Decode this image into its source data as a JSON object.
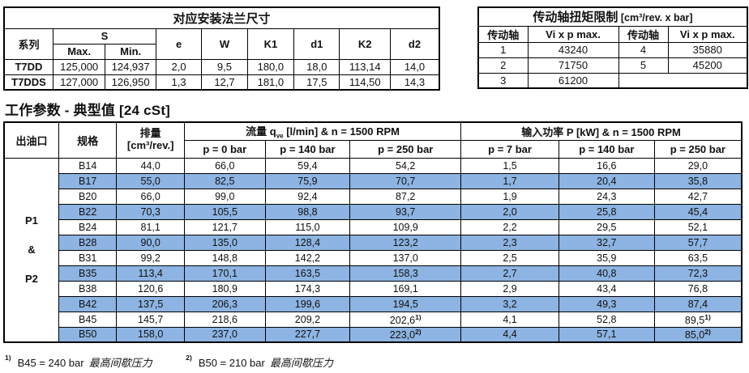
{
  "colors": {
    "highlight": "#8db4e2",
    "border": "#000000",
    "text": "#111111"
  },
  "flange_table": {
    "title": "对应安装法兰尺寸",
    "col_series": "系列",
    "col_s": "S",
    "col_s_max": "Max.",
    "col_s_min": "Min.",
    "cols": [
      "e",
      "W",
      "K1",
      "d1",
      "K2",
      "d2"
    ],
    "rows": [
      {
        "series": "T7DD",
        "values": [
          "125,000",
          "124,937",
          "2,0",
          "9,5",
          "180,0",
          "18,0",
          "113,14",
          "14,0"
        ]
      },
      {
        "series": "T7DDS",
        "values": [
          "127,000",
          "126,950",
          "1,3",
          "12,7",
          "181,0",
          "17,5",
          "114,50",
          "14,3"
        ]
      }
    ]
  },
  "torque_table": {
    "title_bold": "传动轴扭矩限制",
    "title_unit": " [cm³/rev. x bar]",
    "col_shaft": "传动轴",
    "col_vip": "Vi x p max.",
    "rows": [
      [
        "1",
        "43240",
        "4",
        "35880"
      ],
      [
        "2",
        "71750",
        "5",
        "45200"
      ],
      [
        "3",
        "61200",
        "",
        ""
      ]
    ]
  },
  "params_section": {
    "title": "工作参数 - 典型值 [24 cSt]",
    "col_outlet": "出油口",
    "col_size": "规格",
    "col_displacement_line1": "排量",
    "col_displacement_line2": "[cm³/rev.]",
    "flow_header_prefix": "流量 q",
    "flow_header_sub": "ve",
    "flow_header_suffix": " [l/min] & n = 1500 RPM",
    "power_header": "输入功率 P [kW] & n = 1500 RPM",
    "flow_cols": [
      "p = 0 bar",
      "p = 140 bar",
      "p = 250 bar"
    ],
    "power_cols": [
      "p = 7 bar",
      "p = 140 bar",
      "p = 250 bar"
    ],
    "outlet_label": [
      "P1",
      "&",
      "P2"
    ],
    "rows": [
      {
        "size": "B14",
        "disp": "44,0",
        "flow0": "66,0",
        "flow140": "59,4",
        "flow250": "54,2",
        "p7": "1,5",
        "p140": "16,6",
        "p250": "29,0"
      },
      {
        "size": "B17",
        "disp": "55,0",
        "flow0": "82,5",
        "flow140": "75,9",
        "flow250": "70,7",
        "p7": "1,7",
        "p140": "20,4",
        "p250": "35,8"
      },
      {
        "size": "B20",
        "disp": "66,0",
        "flow0": "99,0",
        "flow140": "92,4",
        "flow250": "87,2",
        "p7": "1,9",
        "p140": "24,3",
        "p250": "42,7"
      },
      {
        "size": "B22",
        "disp": "70,3",
        "flow0": "105,5",
        "flow140": "98,8",
        "flow250": "93,7",
        "p7": "2,0",
        "p140": "25,8",
        "p250": "45,4"
      },
      {
        "size": "B24",
        "disp": "81,1",
        "flow0": "121,7",
        "flow140": "115,0",
        "flow250": "109,9",
        "p7": "2,2",
        "p140": "29,5",
        "p250": "52,1"
      },
      {
        "size": "B28",
        "disp": "90,0",
        "flow0": "135,0",
        "flow140": "128,4",
        "flow250": "123,2",
        "p7": "2,3",
        "p140": "32,7",
        "p250": "57,7"
      },
      {
        "size": "B31",
        "disp": "99,2",
        "flow0": "148,8",
        "flow140": "142,2",
        "flow250": "137,0",
        "p7": "2,5",
        "p140": "35,9",
        "p250": "63,5"
      },
      {
        "size": "B35",
        "disp": "113,4",
        "flow0": "170,1",
        "flow140": "163,5",
        "flow250": "158,3",
        "p7": "2,7",
        "p140": "40,8",
        "p250": "72,3"
      },
      {
        "size": "B38",
        "disp": "120,6",
        "flow0": "180,9",
        "flow140": "174,3",
        "flow250": "169,1",
        "p7": "2,9",
        "p140": "43,4",
        "p250": "76,8"
      },
      {
        "size": "B42",
        "disp": "137,5",
        "flow0": "206,3",
        "flow140": "199,6",
        "flow250": "194,5",
        "p7": "3,2",
        "p140": "49,3",
        "p250": "87,4"
      },
      {
        "size": "B45",
        "disp": "145,7",
        "flow0": "218,6",
        "flow140": "209,2",
        "flow250": "202,6",
        "flow250_sup": "1)",
        "p7": "4,1",
        "p140": "52,8",
        "p250": "89,5",
        "p250_sup": "1)"
      },
      {
        "size": "B50",
        "disp": "158,0",
        "flow0": "237,0",
        "flow140": "227,7",
        "flow250": "223,0",
        "flow250_sup": "2)",
        "p7": "4,4",
        "p140": "57,1",
        "p250": "85,0",
        "p250_sup": "2)"
      }
    ]
  },
  "footnotes": [
    {
      "marker": "1)",
      "text": "B45 = 240 bar",
      "italic": "最高间歇压力"
    },
    {
      "marker": "2)",
      "text": "B50 = 210 bar",
      "italic": "最高间歇压力"
    }
  ]
}
